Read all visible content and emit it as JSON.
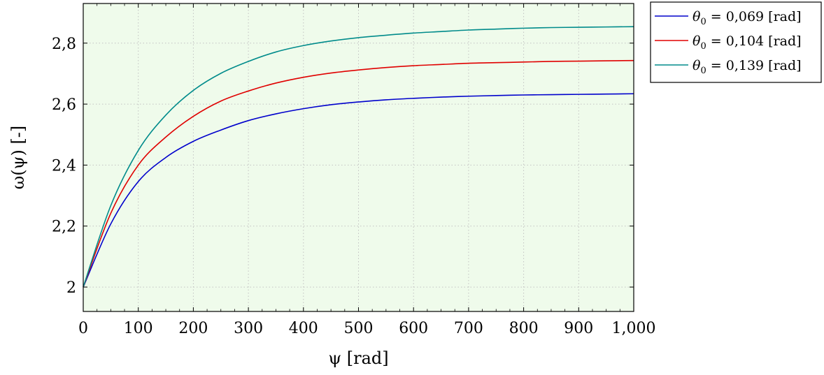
{
  "chart_data": {
    "type": "line",
    "title": "",
    "xlabel": "ψ [rad]",
    "ylabel": "ω(ψ) [-]",
    "xlim": [
      0,
      1000
    ],
    "ylim": [
      1.92,
      2.93
    ],
    "grid": true,
    "background_color": "#effbeb",
    "legend_placement": "outside-top-right",
    "x_ticks": [
      0,
      100,
      200,
      300,
      400,
      500,
      600,
      700,
      800,
      900,
      1000
    ],
    "x_tick_labels": [
      "0",
      "100",
      "200",
      "300",
      "400",
      "500",
      "600",
      "700",
      "800",
      "900",
      "1,000"
    ],
    "y_ticks": [
      2.0,
      2.2,
      2.4,
      2.6,
      2.8
    ],
    "y_tick_labels": [
      "2",
      "2,2",
      "2,4",
      "2,6",
      "2,8"
    ],
    "x": [
      0,
      50,
      100,
      150,
      200,
      250,
      300,
      350,
      400,
      450,
      500,
      550,
      600,
      650,
      700,
      750,
      800,
      850,
      900,
      950,
      1000
    ],
    "series": [
      {
        "name": "θ0 = 0,069 [rad]",
        "name_base": "θ",
        "name_sub": "0",
        "name_rest": " = 0,069 [rad]",
        "color": "#0000cc",
        "values": [
          2.0,
          2.207,
          2.346,
          2.425,
          2.478,
          2.515,
          2.546,
          2.568,
          2.585,
          2.598,
          2.607,
          2.614,
          2.619,
          2.623,
          2.626,
          2.628,
          2.63,
          2.631,
          2.632,
          2.633,
          2.634
        ]
      },
      {
        "name": "θ0 = 0,104 [rad]",
        "name_base": "θ",
        "name_sub": "0",
        "name_rest": " = 0,104 [rad]",
        "color": "#e00000",
        "values": [
          2.0,
          2.242,
          2.4,
          2.492,
          2.56,
          2.61,
          2.643,
          2.669,
          2.688,
          2.702,
          2.712,
          2.72,
          2.726,
          2.73,
          2.734,
          2.736,
          2.738,
          2.74,
          2.741,
          2.742,
          2.743
        ]
      },
      {
        "name": "θ0 = 0,139 [rad]",
        "name_base": "θ",
        "name_sub": "0",
        "name_rest": " = 0,139 [rad]",
        "color": "#008b8b",
        "values": [
          2.0,
          2.267,
          2.448,
          2.564,
          2.645,
          2.701,
          2.74,
          2.771,
          2.792,
          2.807,
          2.818,
          2.826,
          2.833,
          2.838,
          2.843,
          2.846,
          2.849,
          2.851,
          2.852,
          2.853,
          2.854
        ]
      }
    ]
  }
}
